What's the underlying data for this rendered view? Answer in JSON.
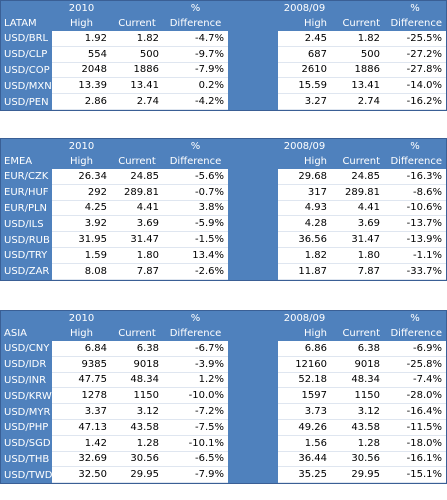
{
  "tables": [
    {
      "region": "LATAM",
      "left_year": "2010",
      "right_year": "2008/09",
      "col_high": "High",
      "col_current": "Current",
      "col_pct": "%",
      "col_diff": "Difference",
      "rows": [
        {
          "pair": "USD/BRL",
          "h1": "1.92",
          "c1": "1.82",
          "d1": "-4.7%",
          "h2": "2.45",
          "c2": "1.82",
          "d2": "-25.5%"
        },
        {
          "pair": "USD/CLP",
          "h1": "554",
          "c1": "500",
          "d1": "-9.7%",
          "h2": "687",
          "c2": "500",
          "d2": "-27.2%"
        },
        {
          "pair": "USD/COP",
          "h1": "2048",
          "c1": "1886",
          "d1": "-7.9%",
          "h2": "2610",
          "c2": "1886",
          "d2": "-27.8%"
        },
        {
          "pair": "USD/MXN",
          "h1": "13.39",
          "c1": "13.41",
          "d1": "0.2%",
          "h2": "15.59",
          "c2": "13.41",
          "d2": "-14.0%"
        },
        {
          "pair": "USD/PEN",
          "h1": "2.86",
          "c1": "2.74",
          "d1": "-4.2%",
          "h2": "3.27",
          "c2": "2.74",
          "d2": "-16.2%"
        }
      ]
    },
    {
      "region": "EMEA",
      "left_year": "2010",
      "right_year": "2008/09",
      "col_high": "High",
      "col_current": "Current",
      "col_pct": "%",
      "col_diff": "Difference",
      "rows": [
        {
          "pair": "EUR/CZK",
          "h1": "26.34",
          "c1": "24.85",
          "d1": "-5.6%",
          "h2": "29.68",
          "c2": "24.85",
          "d2": "-16.3%"
        },
        {
          "pair": "EUR/HUF",
          "h1": "292",
          "c1": "289.81",
          "d1": "-0.7%",
          "h2": "317",
          "c2": "289.81",
          "d2": "-8.6%"
        },
        {
          "pair": "EUR/PLN",
          "h1": "4.25",
          "c1": "4.41",
          "d1": "3.8%",
          "h2": "4.93",
          "c2": "4.41",
          "d2": "-10.6%"
        },
        {
          "pair": "USD/ILS",
          "h1": "3.92",
          "c1": "3.69",
          "d1": "-5.9%",
          "h2": "4.28",
          "c2": "3.69",
          "d2": "-13.7%"
        },
        {
          "pair": "USD/RUB",
          "h1": "31.95",
          "c1": "31.47",
          "d1": "-1.5%",
          "h2": "36.56",
          "c2": "31.47",
          "d2": "-13.9%"
        },
        {
          "pair": "USD/TRY",
          "h1": "1.59",
          "c1": "1.80",
          "d1": "13.4%",
          "h2": "1.82",
          "c2": "1.80",
          "d2": "-1.1%"
        },
        {
          "pair": "USD/ZAR",
          "h1": "8.08",
          "c1": "7.87",
          "d1": "-2.6%",
          "h2": "11.87",
          "c2": "7.87",
          "d2": "-33.7%"
        }
      ]
    },
    {
      "region": "ASIA",
      "left_year": "2010",
      "right_year": "2008/09",
      "col_high": "High",
      "col_current": "Current",
      "col_pct": "%",
      "col_diff": "Difference",
      "rows": [
        {
          "pair": "USD/CNY",
          "h1": "6.84",
          "c1": "6.38",
          "d1": "-6.7%",
          "h2": "6.86",
          "c2": "6.38",
          "d2": "-6.9%"
        },
        {
          "pair": "USD/IDR",
          "h1": "9385",
          "c1": "9018",
          "d1": "-3.9%",
          "h2": "12160",
          "c2": "9018",
          "d2": "-25.8%"
        },
        {
          "pair": "USD/INR",
          "h1": "47.75",
          "c1": "48.34",
          "d1": "1.2%",
          "h2": "52.18",
          "c2": "48.34",
          "d2": "-7.4%"
        },
        {
          "pair": "USD/KRW",
          "h1": "1278",
          "c1": "1150",
          "d1": "-10.0%",
          "h2": "1597",
          "c2": "1150",
          "d2": "-28.0%"
        },
        {
          "pair": "USD/MYR",
          "h1": "3.37",
          "c1": "3.12",
          "d1": "-7.2%",
          "h2": "3.73",
          "c2": "3.12",
          "d2": "-16.4%"
        },
        {
          "pair": "USD/PHP",
          "h1": "47.13",
          "c1": "43.58",
          "d1": "-7.5%",
          "h2": "49.26",
          "c2": "43.58",
          "d2": "-11.5%"
        },
        {
          "pair": "USD/SGD",
          "h1": "1.42",
          "c1": "1.28",
          "d1": "-10.1%",
          "h2": "1.56",
          "c2": "1.28",
          "d2": "-18.0%"
        },
        {
          "pair": "USD/THB",
          "h1": "32.69",
          "c1": "30.56",
          "d1": "-6.5%",
          "h2": "36.44",
          "c2": "30.56",
          "d2": "-16.1%"
        },
        {
          "pair": "USD/TWD",
          "h1": "32.50",
          "c1": "29.95",
          "d1": "-7.9%",
          "h2": "35.25",
          "c2": "29.95",
          "d2": "-15.1%"
        }
      ]
    }
  ],
  "colors": {
    "header_blue": "#4f81bd",
    "border": "#3a5f95",
    "cell_bg": "#ffffff"
  }
}
